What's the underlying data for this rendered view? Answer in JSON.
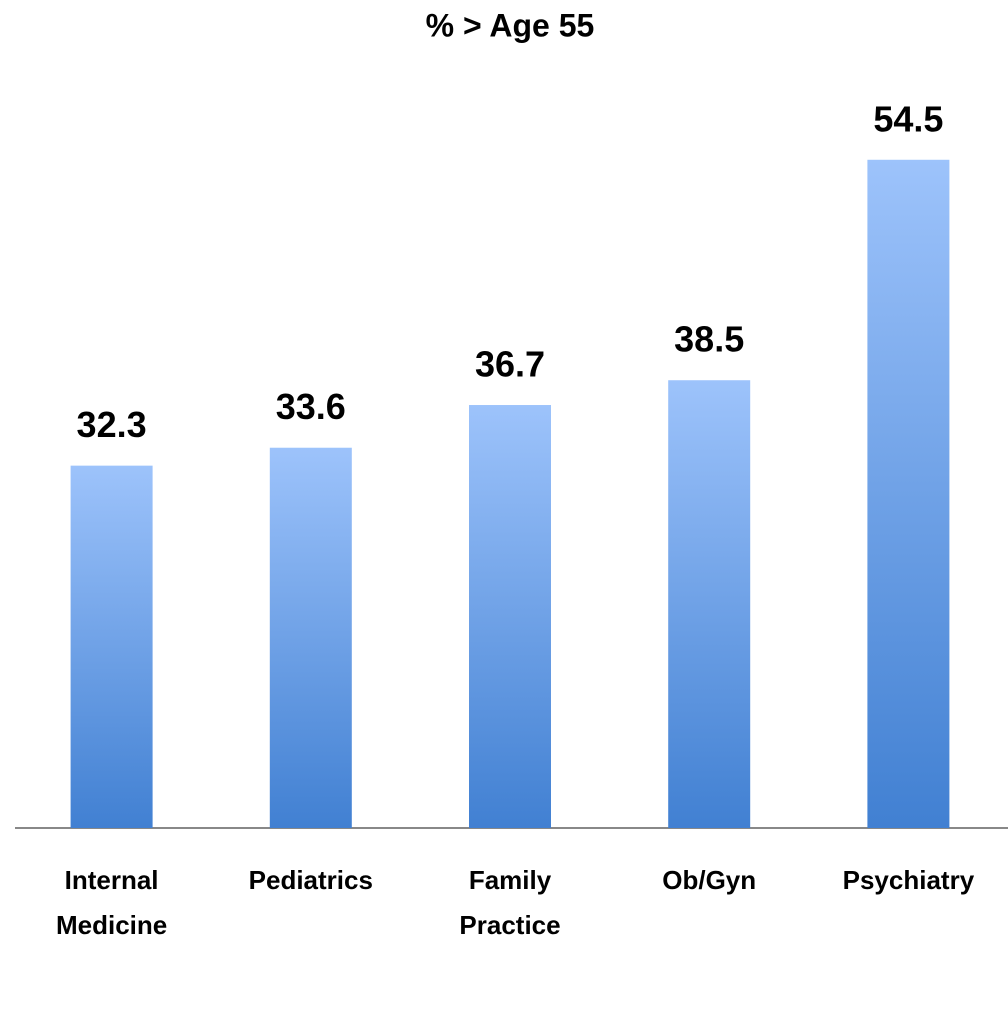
{
  "chart_data": {
    "type": "bar",
    "title": "% > Age 55",
    "categories": [
      "Internal Medicine",
      "Pediatrics",
      "Family Practice",
      "Ob/Gyn",
      "Psychiatry"
    ],
    "values": [
      32.3,
      33.6,
      36.7,
      38.5,
      54.5
    ],
    "colors": [
      "#9dc3fb",
      "#4180d2"
    ],
    "ylim": [
      6,
      60
    ]
  }
}
